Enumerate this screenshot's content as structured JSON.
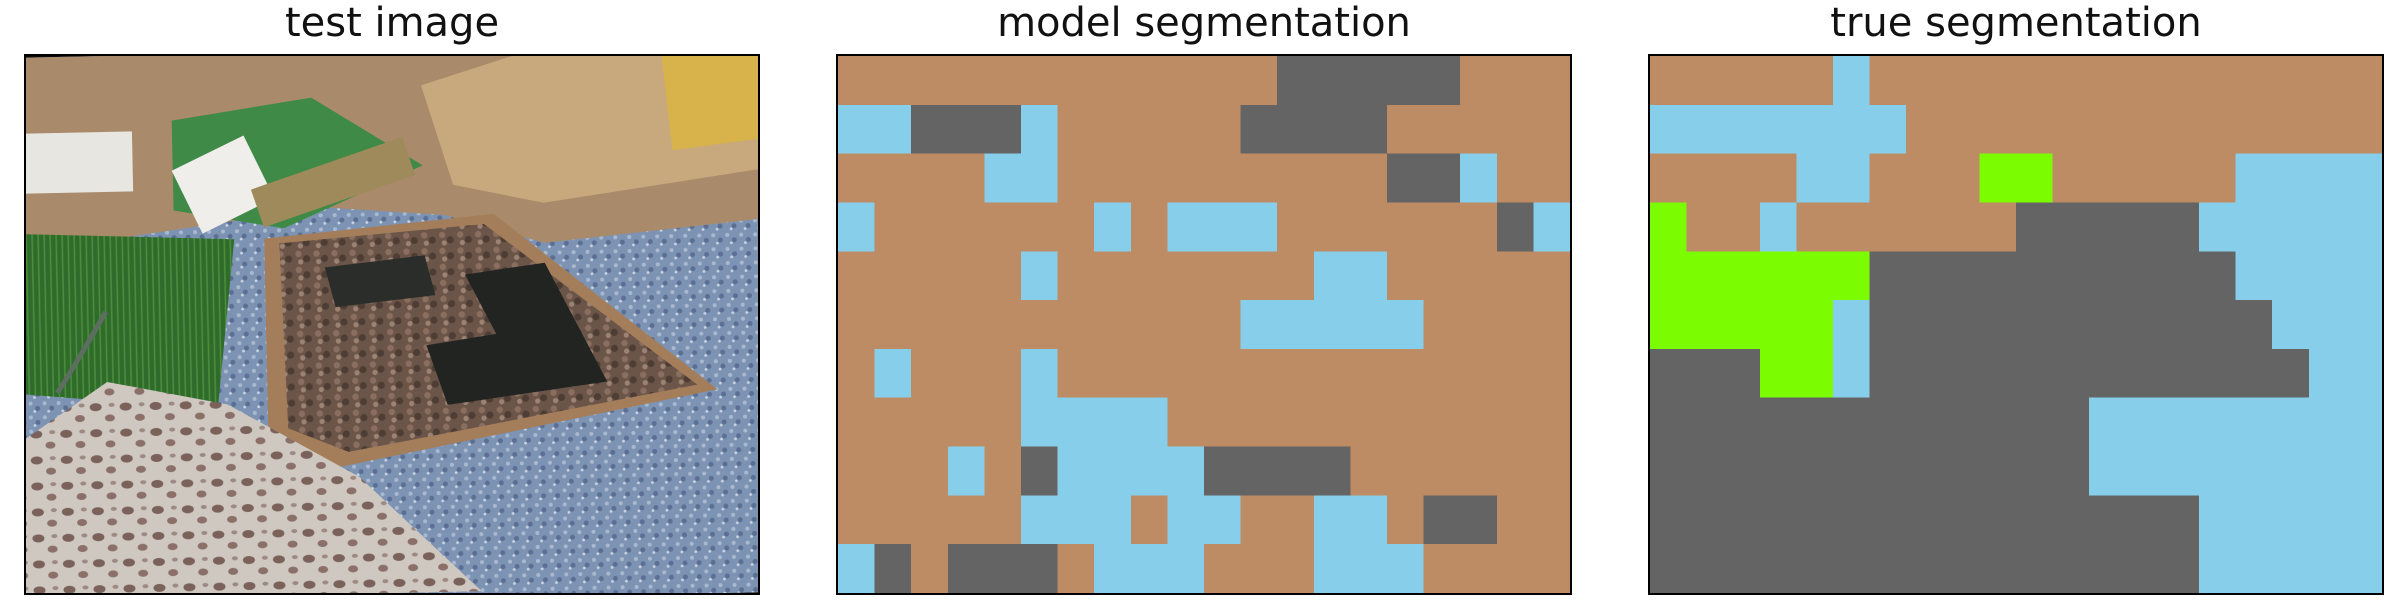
{
  "panels": {
    "test_image_title": "test image",
    "model_title": "model segmentation",
    "true_title": "true segmentation"
  },
  "palette": {
    "0": "#bd8c64",
    "1": "#87ceeb",
    "2": "#646464",
    "3": "#7cfc00"
  },
  "model_grid": [
    [
      0,
      0,
      0,
      0,
      0,
      0,
      0,
      0,
      0,
      0,
      0,
      0,
      2,
      2,
      2,
      2,
      2,
      0,
      0,
      0
    ],
    [
      1,
      1,
      2,
      2,
      2,
      1,
      0,
      0,
      0,
      0,
      0,
      2,
      2,
      2,
      2,
      0,
      0,
      0,
      0,
      0
    ],
    [
      0,
      0,
      0,
      0,
      1,
      1,
      0,
      0,
      0,
      0,
      0,
      0,
      0,
      0,
      0,
      2,
      2,
      1,
      0,
      0
    ],
    [
      1,
      0,
      0,
      0,
      0,
      0,
      0,
      1,
      0,
      1,
      1,
      1,
      0,
      0,
      0,
      0,
      0,
      0,
      2,
      1
    ],
    [
      0,
      0,
      0,
      0,
      0,
      1,
      0,
      0,
      0,
      0,
      0,
      0,
      0,
      1,
      1,
      0,
      0,
      0,
      0,
      0
    ],
    [
      0,
      0,
      0,
      0,
      0,
      0,
      0,
      0,
      0,
      0,
      0,
      1,
      1,
      1,
      1,
      1,
      0,
      0,
      0,
      0
    ],
    [
      0,
      1,
      0,
      0,
      0,
      1,
      0,
      0,
      0,
      0,
      0,
      0,
      0,
      0,
      0,
      0,
      0,
      0,
      0,
      0
    ],
    [
      0,
      0,
      0,
      0,
      0,
      1,
      1,
      1,
      1,
      0,
      0,
      0,
      0,
      0,
      0,
      0,
      0,
      0,
      0,
      0
    ],
    [
      0,
      0,
      0,
      1,
      0,
      2,
      1,
      1,
      1,
      1,
      2,
      2,
      2,
      2,
      0,
      0,
      0,
      0,
      0,
      0
    ],
    [
      0,
      0,
      0,
      0,
      0,
      1,
      1,
      1,
      0,
      1,
      1,
      0,
      0,
      1,
      1,
      0,
      2,
      2,
      0,
      0
    ],
    [
      1,
      2,
      0,
      2,
      2,
      2,
      0,
      1,
      1,
      1,
      0,
      0,
      0,
      1,
      1,
      1,
      0,
      0,
      0,
      0
    ]
  ],
  "true_grid": [
    [
      0,
      0,
      0,
      0,
      0,
      1,
      0,
      0,
      0,
      0,
      0,
      0,
      0,
      0,
      0,
      0,
      0,
      0,
      0,
      0
    ],
    [
      1,
      1,
      1,
      1,
      1,
      1,
      1,
      0,
      0,
      0,
      0,
      0,
      0,
      0,
      0,
      0,
      0,
      0,
      0,
      0
    ],
    [
      0,
      0,
      0,
      0,
      1,
      1,
      0,
      0,
      0,
      3,
      3,
      0,
      0,
      0,
      0,
      0,
      1,
      1,
      1,
      1
    ],
    [
      3,
      0,
      0,
      1,
      0,
      0,
      0,
      0,
      0,
      0,
      2,
      2,
      2,
      2,
      2,
      1,
      1,
      1,
      1,
      1
    ],
    [
      3,
      3,
      3,
      3,
      3,
      3,
      2,
      2,
      2,
      2,
      2,
      2,
      2,
      2,
      2,
      2,
      1,
      1,
      1,
      1
    ],
    [
      3,
      3,
      3,
      3,
      3,
      1,
      2,
      2,
      2,
      2,
      2,
      2,
      2,
      2,
      2,
      2,
      2,
      1,
      1,
      1
    ],
    [
      2,
      2,
      2,
      3,
      3,
      1,
      2,
      2,
      2,
      2,
      2,
      2,
      2,
      2,
      2,
      2,
      2,
      2,
      1,
      1
    ],
    [
      2,
      2,
      2,
      2,
      2,
      2,
      2,
      2,
      2,
      2,
      2,
      2,
      1,
      1,
      1,
      1,
      1,
      1,
      1,
      1
    ],
    [
      2,
      2,
      2,
      2,
      2,
      2,
      2,
      2,
      2,
      2,
      2,
      2,
      1,
      1,
      1,
      1,
      1,
      1,
      1,
      1
    ],
    [
      2,
      2,
      2,
      2,
      2,
      2,
      2,
      2,
      2,
      2,
      2,
      2,
      2,
      2,
      2,
      1,
      1,
      1,
      1,
      1
    ],
    [
      2,
      2,
      2,
      2,
      2,
      2,
      2,
      2,
      2,
      2,
      2,
      2,
      2,
      2,
      2,
      1,
      1,
      1,
      1,
      1
    ]
  ]
}
